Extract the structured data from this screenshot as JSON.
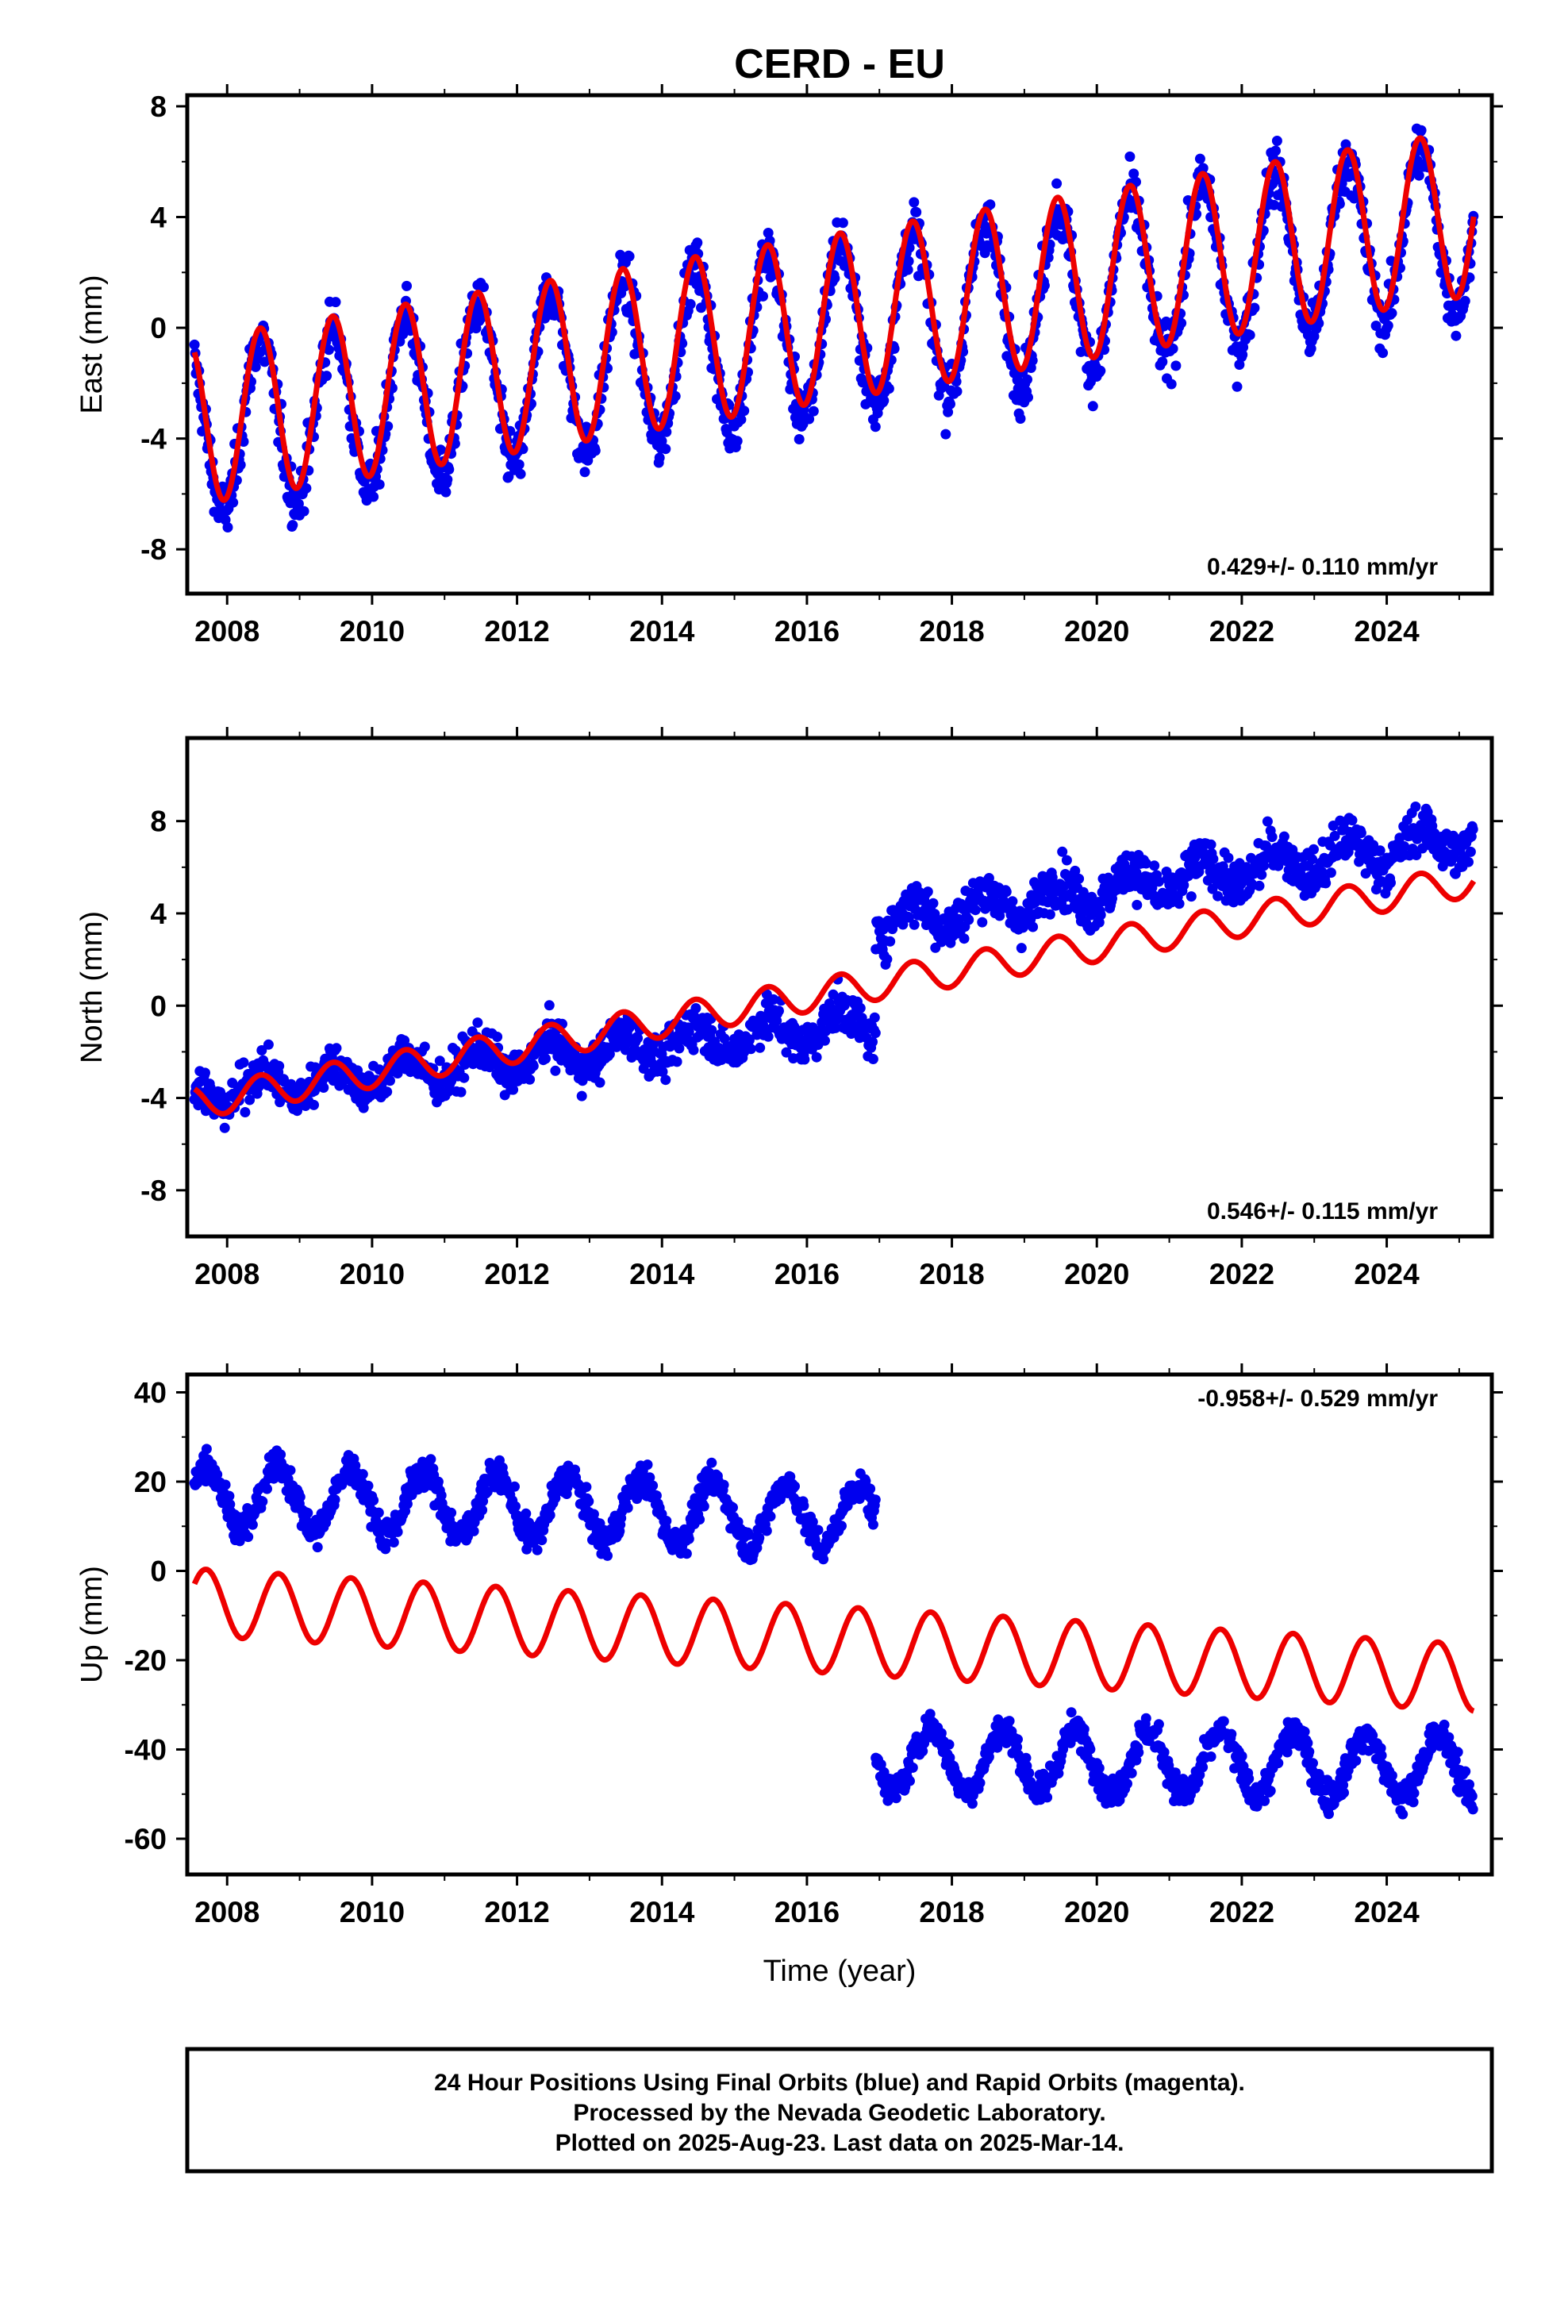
{
  "title": "CERD - EU",
  "xlabel": "Time (year)",
  "footer": {
    "line1": "24 Hour Positions Using Final Orbits (blue) and Rapid Orbits (magenta).",
    "line2": "Processed by the Nevada Geodetic Laboratory.",
    "line3": "Plotted on 2025-Aug-23. Last data on 2025-Mar-14."
  },
  "colors": {
    "data": "#0000ee",
    "model": "#ee0000",
    "axes": "#000000"
  },
  "chart_data": [
    {
      "type": "scatter",
      "ylabel": "East (mm)",
      "rate_label": "0.429+/- 0.110 mm/yr",
      "xlim": [
        2007.45,
        2025.45
      ],
      "ylim": [
        -9.6,
        8.4
      ],
      "xticks": [
        2008,
        2010,
        2012,
        2014,
        2016,
        2018,
        2020,
        2022,
        2024
      ],
      "yticks": [
        -8,
        -4,
        0,
        4,
        8
      ],
      "data_range": [
        2007.55,
        2025.2
      ],
      "data_segments": [
        {
          "start": 2007.55,
          "end": 2025.2,
          "offset": -3.8,
          "rate": 0.429,
          "annual_amp": 3.0,
          "noise": 1.3
        }
      ],
      "model": {
        "offset": -3.4,
        "rate": 0.429,
        "annual_amp": 3.0,
        "phase_peak_month": 5.5
      },
      "series": [
        {
          "name": "24 hour positions (final orbits)",
          "color": "blue"
        },
        {
          "name": "model fit",
          "color": "red"
        }
      ]
    },
    {
      "type": "scatter",
      "ylabel": "North (mm)",
      "rate_label": "0.546+/- 0.115 mm/yr",
      "xlim": [
        2007.45,
        2025.45
      ],
      "ylim": [
        -10.0,
        11.6
      ],
      "xticks": [
        2008,
        2010,
        2012,
        2014,
        2016,
        2018,
        2020,
        2022,
        2024
      ],
      "yticks": [
        -8,
        -4,
        0,
        4,
        8
      ],
      "data_range": [
        2007.55,
        2025.2
      ],
      "data_segments": [
        {
          "start": 2007.55,
          "end": 2016.95,
          "offset": -3.8,
          "rate": 0.33,
          "annual_amp": 0.7,
          "noise": 1.2
        },
        {
          "start": 2016.95,
          "end": 2025.2,
          "offset": 3.6,
          "rate": 0.45,
          "annual_amp": 0.7,
          "noise": 1.3
        }
      ],
      "model": {
        "offset": -4.2,
        "rate": 0.546,
        "annual_amp": 0.7,
        "phase_peak_month": 5.5
      },
      "series": [
        {
          "name": "24 hour positions (final orbits)",
          "color": "blue"
        },
        {
          "name": "model fit",
          "color": "red"
        }
      ]
    },
    {
      "type": "scatter",
      "ylabel": "Up (mm)",
      "rate_label": "-0.958+/- 0.529 mm/yr",
      "xlim": [
        2007.45,
        2025.45
      ],
      "ylim": [
        -68,
        44
      ],
      "xticks": [
        2008,
        2010,
        2012,
        2014,
        2016,
        2018,
        2020,
        2022,
        2024
      ],
      "yticks": [
        -60,
        -40,
        -20,
        0,
        20,
        40
      ],
      "data_range": [
        2007.55,
        2025.2
      ],
      "data_segments": [
        {
          "start": 2007.55,
          "end": 2016.95,
          "offset": 17,
          "rate": -0.55,
          "annual_amp": 7.0,
          "noise": 4.5
        },
        {
          "start": 2016.95,
          "end": 2025.2,
          "offset": -42,
          "rate": -0.25,
          "annual_amp": 7.0,
          "noise": 4.5
        }
      ],
      "model": {
        "offset": -7.0,
        "rate": -0.958,
        "annual_amp": 7.5,
        "phase_peak_month": 8.5
      },
      "series": [
        {
          "name": "24 hour positions (final orbits)",
          "color": "blue"
        },
        {
          "name": "model fit",
          "color": "red"
        }
      ]
    }
  ]
}
